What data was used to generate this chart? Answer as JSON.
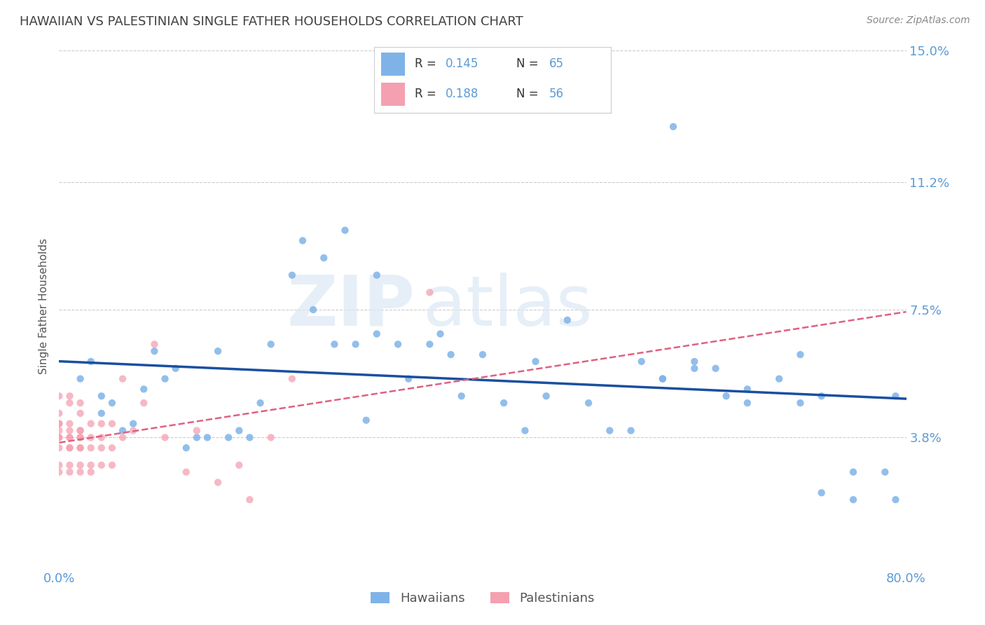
{
  "title": "HAWAIIAN VS PALESTINIAN SINGLE FATHER HOUSEHOLDS CORRELATION CHART",
  "source": "Source: ZipAtlas.com",
  "ylabel": "Single Father Households",
  "xlabel": "",
  "xlim": [
    0.0,
    0.8
  ],
  "ylim": [
    0.0,
    0.15
  ],
  "yticks": [
    0.038,
    0.075,
    0.112,
    0.15
  ],
  "ytick_labels": [
    "3.8%",
    "7.5%",
    "11.2%",
    "15.0%"
  ],
  "xticks": [
    0.0,
    0.2,
    0.4,
    0.6,
    0.8
  ],
  "xtick_labels": [
    "0.0%",
    "",
    "",
    "",
    "80.0%"
  ],
  "hawaiian_R": 0.145,
  "hawaiian_N": 65,
  "palestinian_R": 0.188,
  "palestinian_N": 56,
  "hawaiian_color": "#7fb3e8",
  "palestinian_color": "#f4a0b0",
  "hawaiian_line_color": "#1a4fa0",
  "palestinian_line_color": "#e06080",
  "grid_color": "#cccccc",
  "background_color": "#ffffff",
  "watermark_zip": "ZIP",
  "watermark_atlas": "atlas",
  "title_color": "#404040",
  "title_fontsize": 13,
  "axis_label_color": "#5b9bd5",
  "hawaiian_x": [
    0.02,
    0.03,
    0.04,
    0.04,
    0.05,
    0.06,
    0.07,
    0.08,
    0.09,
    0.1,
    0.11,
    0.12,
    0.13,
    0.14,
    0.15,
    0.16,
    0.17,
    0.18,
    0.19,
    0.2,
    0.22,
    0.23,
    0.24,
    0.25,
    0.26,
    0.27,
    0.28,
    0.29,
    0.3,
    0.3,
    0.32,
    0.33,
    0.35,
    0.36,
    0.37,
    0.38,
    0.4,
    0.42,
    0.44,
    0.45,
    0.46,
    0.48,
    0.5,
    0.52,
    0.54,
    0.55,
    0.57,
    0.58,
    0.6,
    0.62,
    0.65,
    0.68,
    0.7,
    0.72,
    0.75,
    0.57,
    0.6,
    0.63,
    0.65,
    0.7,
    0.72,
    0.75,
    0.78,
    0.79,
    0.79
  ],
  "hawaiian_y": [
    0.055,
    0.06,
    0.045,
    0.05,
    0.048,
    0.04,
    0.042,
    0.052,
    0.063,
    0.055,
    0.058,
    0.035,
    0.038,
    0.038,
    0.063,
    0.038,
    0.04,
    0.038,
    0.048,
    0.065,
    0.085,
    0.095,
    0.075,
    0.09,
    0.065,
    0.098,
    0.065,
    0.043,
    0.085,
    0.068,
    0.065,
    0.055,
    0.065,
    0.068,
    0.062,
    0.05,
    0.062,
    0.048,
    0.04,
    0.06,
    0.05,
    0.072,
    0.048,
    0.04,
    0.04,
    0.06,
    0.055,
    0.128,
    0.06,
    0.058,
    0.048,
    0.055,
    0.062,
    0.05,
    0.028,
    0.055,
    0.058,
    0.05,
    0.052,
    0.048,
    0.022,
    0.02,
    0.028,
    0.02,
    0.05
  ],
  "palestinian_x": [
    0.0,
    0.0,
    0.0,
    0.0,
    0.0,
    0.0,
    0.0,
    0.0,
    0.0,
    0.0,
    0.01,
    0.01,
    0.01,
    0.01,
    0.01,
    0.01,
    0.01,
    0.01,
    0.01,
    0.01,
    0.02,
    0.02,
    0.02,
    0.02,
    0.02,
    0.02,
    0.02,
    0.02,
    0.02,
    0.02,
    0.03,
    0.03,
    0.03,
    0.03,
    0.03,
    0.04,
    0.04,
    0.04,
    0.04,
    0.05,
    0.05,
    0.05,
    0.06,
    0.06,
    0.07,
    0.08,
    0.09,
    0.1,
    0.12,
    0.13,
    0.15,
    0.17,
    0.18,
    0.2,
    0.22,
    0.35
  ],
  "palestinian_y": [
    0.04,
    0.042,
    0.038,
    0.05,
    0.035,
    0.038,
    0.042,
    0.03,
    0.028,
    0.045,
    0.05,
    0.035,
    0.038,
    0.042,
    0.03,
    0.048,
    0.038,
    0.04,
    0.035,
    0.028,
    0.048,
    0.038,
    0.04,
    0.035,
    0.028,
    0.045,
    0.03,
    0.038,
    0.035,
    0.04,
    0.028,
    0.042,
    0.035,
    0.03,
    0.038,
    0.042,
    0.03,
    0.035,
    0.038,
    0.042,
    0.03,
    0.035,
    0.055,
    0.038,
    0.04,
    0.048,
    0.065,
    0.038,
    0.028,
    0.04,
    0.025,
    0.03,
    0.02,
    0.038,
    0.055,
    0.08
  ]
}
